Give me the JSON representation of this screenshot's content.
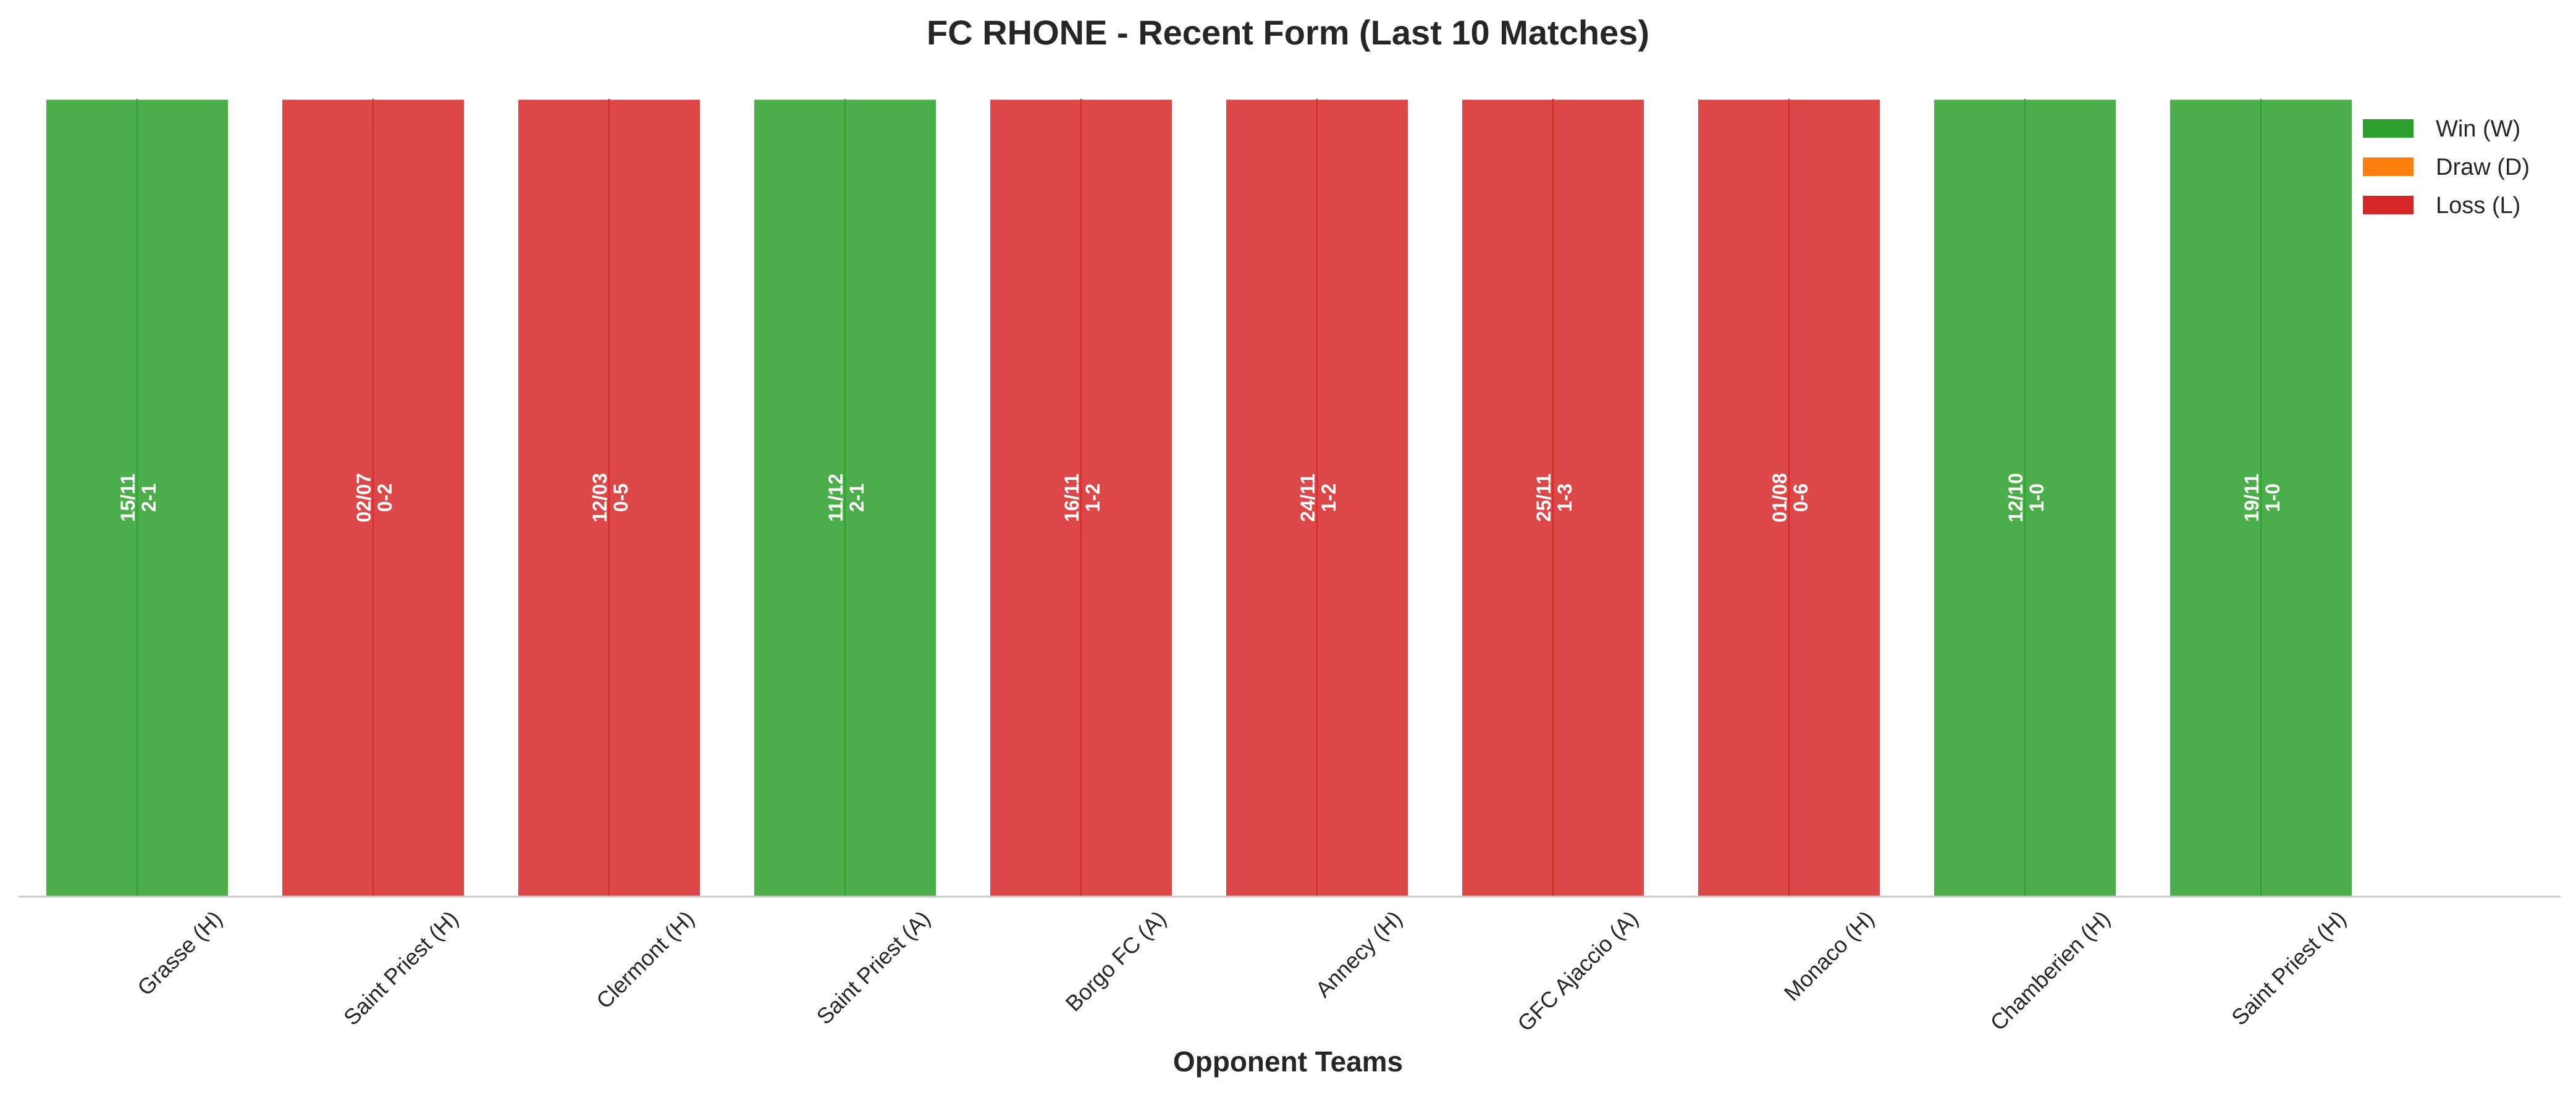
{
  "chart_data": {
    "type": "bar",
    "title": "FC RHONE - Recent Form (Last 10 Matches)",
    "xlabel": "Opponent Teams",
    "ylabel": "",
    "grid": false,
    "legend_placement": "top-right",
    "categories": [
      "Grasse (H)",
      "Saint Priest (H)",
      "Clermont (H)",
      "Saint Priest (A)",
      "Borgo FC (A)",
      "Annecy (H)",
      "GFC Ajaccio (A)",
      "Monaco (H)",
      "Chamberien (H)",
      "Saint Priest (H)"
    ],
    "values": [
      1,
      1,
      1,
      1,
      1,
      1,
      1,
      1,
      1,
      1
    ],
    "ylim": [
      0,
      1
    ],
    "results": [
      "W",
      "L",
      "L",
      "W",
      "L",
      "L",
      "L",
      "L",
      "W",
      "W"
    ],
    "dates": [
      "15/11",
      "02/07",
      "12/03",
      "11/12",
      "16/11",
      "24/11",
      "25/11",
      "01/08",
      "12/10",
      "19/11"
    ],
    "scores": [
      "2-1",
      "0-2",
      "0-5",
      "2-1",
      "1-2",
      "1-2",
      "1-3",
      "0-6",
      "1-0",
      "1-0"
    ],
    "legend": [
      {
        "key": "W",
        "label": "Win (W)",
        "color": "#2ca02c"
      },
      {
        "key": "D",
        "label": "Draw (D)",
        "color": "#ff7f0e"
      },
      {
        "key": "L",
        "label": "Loss (L)",
        "color": "#d62728"
      }
    ]
  }
}
